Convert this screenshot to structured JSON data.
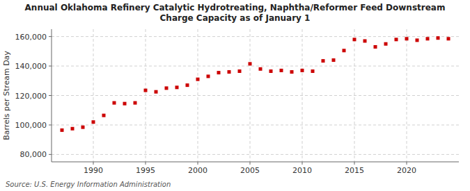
{
  "chart_data": {
    "type": "scatter",
    "title": "Annual Oklahoma Refinery Catalytic Hydrotreating, Naphtha/Reformer Feed Downstream\nCharge Capacity as of January 1",
    "y_label": "Barrels per Stream Day",
    "source": "Source: U.S. Energy Information Administration",
    "color": "#cc0000",
    "marker": "square",
    "grid": true,
    "x": [
      1987,
      1988,
      1989,
      1990,
      1991,
      1992,
      1993,
      1994,
      1995,
      1996,
      1997,
      1998,
      1999,
      2000,
      2001,
      2002,
      2003,
      2004,
      2005,
      2006,
      2007,
      2008,
      2009,
      2010,
      2011,
      2012,
      2013,
      2014,
      2015,
      2016,
      2017,
      2018,
      2019,
      2020,
      2021,
      2022,
      2023,
      2024
    ],
    "values": [
      96500,
      97500,
      98500,
      102000,
      106500,
      115000,
      114500,
      115000,
      123500,
      122500,
      125000,
      125500,
      127000,
      131000,
      133000,
      135500,
      136000,
      136500,
      141500,
      138000,
      136500,
      137000,
      136000,
      137000,
      136500,
      143500,
      144000,
      150500,
      158000,
      157000,
      153000,
      155000,
      158000,
      158500,
      157500,
      158500,
      159000,
      158500
    ],
    "xlim": [
      1986,
      2025
    ],
    "xticks": [
      1990,
      1995,
      2000,
      2005,
      2010,
      2015,
      2020
    ],
    "ylim": [
      75000,
      165000
    ],
    "yticks": [
      {
        "value": 80000,
        "label": "80,000"
      },
      {
        "value": 100000,
        "label": "100,000"
      },
      {
        "value": 120000,
        "label": "120,000"
      },
      {
        "value": 140000,
        "label": "140,000"
      },
      {
        "value": 160000,
        "label": "160,000"
      }
    ]
  }
}
